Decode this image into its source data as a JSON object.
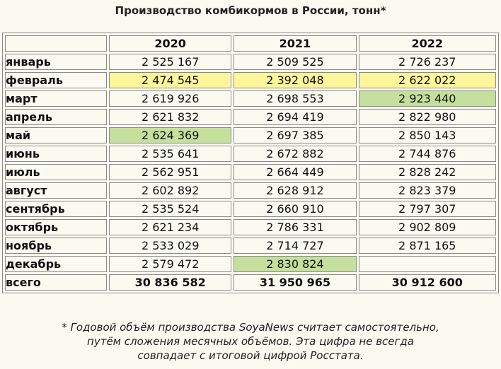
{
  "title": "Производство комбикормов в России, тонн*",
  "colors": {
    "yellow_highlight": "#fff59a",
    "green_highlight": "#c5e09c"
  },
  "chart_data": {
    "type": "table",
    "columns": [
      "2020",
      "2021",
      "2022"
    ],
    "rows": [
      {
        "month": "январь",
        "values": [
          "2 525 167",
          "2 509 525",
          "2 726 237"
        ],
        "highlight": [
          null,
          null,
          null
        ]
      },
      {
        "month": "февраль",
        "values": [
          "2 474 545",
          "2 392 048",
          "2 622 022"
        ],
        "highlight": [
          "yellow",
          "yellow",
          "yellow"
        ]
      },
      {
        "month": "март",
        "values": [
          "2 619 926",
          "2 698 553",
          "2 923 440"
        ],
        "highlight": [
          null,
          null,
          "green"
        ]
      },
      {
        "month": "апрель",
        "values": [
          "2 621 832",
          "2 694 419",
          "2 822 980"
        ],
        "highlight": [
          null,
          null,
          null
        ]
      },
      {
        "month": "май",
        "values": [
          "2 624 369",
          "2 697 385",
          "2 850 143"
        ],
        "highlight": [
          "green",
          null,
          null
        ]
      },
      {
        "month": "июнь",
        "values": [
          "2 535 641",
          "2 672 882",
          "2 744 876"
        ],
        "highlight": [
          null,
          null,
          null
        ]
      },
      {
        "month": "июль",
        "values": [
          "2 562 951",
          "2 664 449",
          "2 828 242"
        ],
        "highlight": [
          null,
          null,
          null
        ]
      },
      {
        "month": "август",
        "values": [
          "2 602 892",
          "2 628 912",
          "2 823 379"
        ],
        "highlight": [
          null,
          null,
          null
        ]
      },
      {
        "month": "сентябрь",
        "values": [
          "2 535 524",
          "2 660 910",
          "2 797 307"
        ],
        "highlight": [
          null,
          null,
          null
        ]
      },
      {
        "month": "октябрь",
        "values": [
          "2 621 234",
          "2 786 331",
          "2 902 809"
        ],
        "highlight": [
          null,
          null,
          null
        ]
      },
      {
        "month": "ноябрь",
        "values": [
          "2 533 029",
          "2 714 727",
          "2 871 165"
        ],
        "highlight": [
          null,
          null,
          null
        ]
      },
      {
        "month": "декабрь",
        "values": [
          "2 579 472",
          "2 830 824",
          ""
        ],
        "highlight": [
          null,
          "green",
          null
        ]
      }
    ],
    "total": {
      "label": "всего",
      "values": [
        "30 836 582",
        "31 950 965",
        "30 912 600"
      ]
    }
  },
  "footnote": [
    "* Годовой объём производства SoyaNews считает самостоятельно,",
    "путём сложения месячных объёмов. Эта цифра не всегда",
    "совпадает с итоговой цифрой Росстата."
  ]
}
